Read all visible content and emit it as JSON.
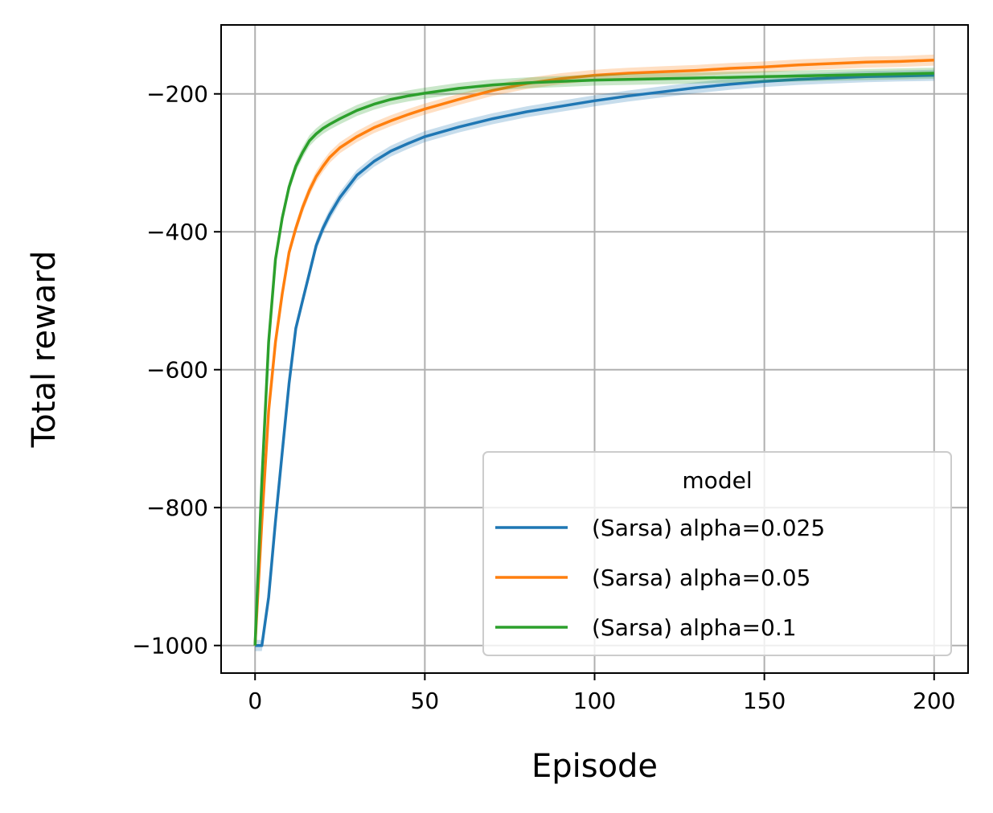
{
  "chart_data": {
    "type": "line",
    "xlabel": "Episode",
    "ylabel": "Total reward",
    "xlim": [
      -10,
      210
    ],
    "ylim": [
      -1040,
      -100
    ],
    "x_ticks": [
      0,
      50,
      100,
      150,
      200
    ],
    "x_tick_labels": [
      "0",
      "50",
      "100",
      "150",
      "200"
    ],
    "y_ticks": [
      -1000,
      -800,
      -600,
      -400,
      -200
    ],
    "y_tick_labels": [
      "−1000",
      "−800",
      "−600",
      "−400",
      "−200"
    ],
    "grid": true,
    "legend": {
      "title": "model",
      "placement": "lower-right"
    },
    "series": [
      {
        "name": "(Sarsa) alpha=0.025",
        "color": "#1f77b4",
        "points": [
          [
            0,
            -1000
          ],
          [
            2,
            -1000
          ],
          [
            4,
            -930
          ],
          [
            6,
            -820
          ],
          [
            8,
            -720
          ],
          [
            10,
            -620
          ],
          [
            12,
            -540
          ],
          [
            14,
            -500
          ],
          [
            16,
            -460
          ],
          [
            18,
            -420
          ],
          [
            20,
            -395
          ],
          [
            22,
            -375
          ],
          [
            25,
            -350
          ],
          [
            30,
            -318
          ],
          [
            35,
            -298
          ],
          [
            40,
            -283
          ],
          [
            45,
            -272
          ],
          [
            50,
            -262
          ],
          [
            60,
            -248
          ],
          [
            70,
            -236
          ],
          [
            80,
            -226
          ],
          [
            90,
            -218
          ],
          [
            100,
            -210
          ],
          [
            110,
            -203
          ],
          [
            120,
            -197
          ],
          [
            130,
            -191
          ],
          [
            140,
            -186
          ],
          [
            150,
            -182
          ],
          [
            160,
            -179
          ],
          [
            170,
            -177
          ],
          [
            180,
            -175
          ],
          [
            190,
            -174
          ],
          [
            200,
            -173
          ]
        ]
      },
      {
        "name": "(Sarsa) alpha=0.05",
        "color": "#ff7f0e",
        "points": [
          [
            0,
            -1000
          ],
          [
            2,
            -820
          ],
          [
            4,
            -660
          ],
          [
            6,
            -560
          ],
          [
            8,
            -490
          ],
          [
            10,
            -430
          ],
          [
            12,
            -395
          ],
          [
            14,
            -365
          ],
          [
            16,
            -340
          ],
          [
            18,
            -320
          ],
          [
            20,
            -305
          ],
          [
            22,
            -292
          ],
          [
            25,
            -278
          ],
          [
            30,
            -262
          ],
          [
            35,
            -249
          ],
          [
            40,
            -239
          ],
          [
            45,
            -230
          ],
          [
            50,
            -222
          ],
          [
            60,
            -208
          ],
          [
            70,
            -195
          ],
          [
            80,
            -185
          ],
          [
            90,
            -178
          ],
          [
            100,
            -173
          ],
          [
            110,
            -170
          ],
          [
            120,
            -168
          ],
          [
            130,
            -166
          ],
          [
            140,
            -163
          ],
          [
            150,
            -161
          ],
          [
            160,
            -158
          ],
          [
            170,
            -156
          ],
          [
            180,
            -154
          ],
          [
            190,
            -153
          ],
          [
            200,
            -151
          ]
        ]
      },
      {
        "name": "(Sarsa) alpha=0.1",
        "color": "#2ca02c",
        "points": [
          [
            0,
            -1000
          ],
          [
            2,
            -760
          ],
          [
            4,
            -560
          ],
          [
            6,
            -440
          ],
          [
            8,
            -380
          ],
          [
            10,
            -335
          ],
          [
            12,
            -305
          ],
          [
            14,
            -285
          ],
          [
            16,
            -268
          ],
          [
            18,
            -258
          ],
          [
            20,
            -250
          ],
          [
            22,
            -244
          ],
          [
            25,
            -236
          ],
          [
            30,
            -224
          ],
          [
            35,
            -215
          ],
          [
            40,
            -208
          ],
          [
            45,
            -203
          ],
          [
            50,
            -199
          ],
          [
            60,
            -192
          ],
          [
            70,
            -187
          ],
          [
            80,
            -184
          ],
          [
            90,
            -182
          ],
          [
            100,
            -180
          ],
          [
            110,
            -179
          ],
          [
            120,
            -178
          ],
          [
            130,
            -177
          ],
          [
            140,
            -176
          ],
          [
            150,
            -175
          ],
          [
            160,
            -174
          ],
          [
            170,
            -173
          ],
          [
            180,
            -172
          ],
          [
            190,
            -171
          ],
          [
            200,
            -170
          ]
        ]
      }
    ]
  }
}
